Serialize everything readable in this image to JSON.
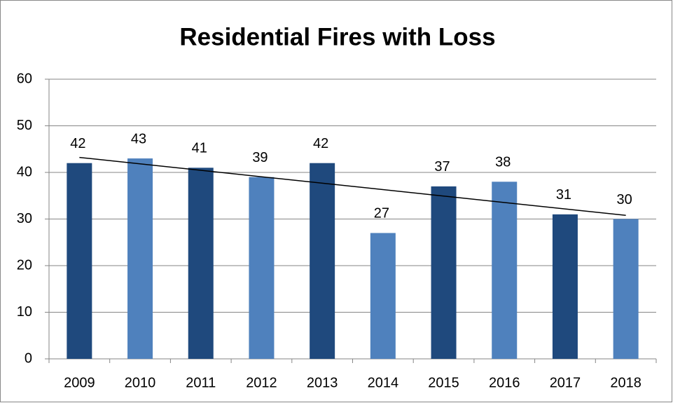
{
  "chart_data": {
    "type": "bar",
    "title": "Residential Fires with Loss",
    "categories": [
      "2009",
      "2010",
      "2011",
      "2012",
      "2013",
      "2014",
      "2015",
      "2016",
      "2017",
      "2018"
    ],
    "values": [
      42,
      43,
      41,
      39,
      42,
      27,
      37,
      38,
      31,
      30
    ],
    "colors": [
      "#1f497d",
      "#4f81bd",
      "#1f497d",
      "#4f81bd",
      "#1f497d",
      "#4f81bd",
      "#1f497d",
      "#4f81bd",
      "#1f497d",
      "#4f81bd"
    ],
    "ylim": [
      0,
      60
    ],
    "yticks": [
      0,
      10,
      20,
      30,
      40,
      50,
      60
    ],
    "grid": true,
    "trendline": "linear"
  }
}
